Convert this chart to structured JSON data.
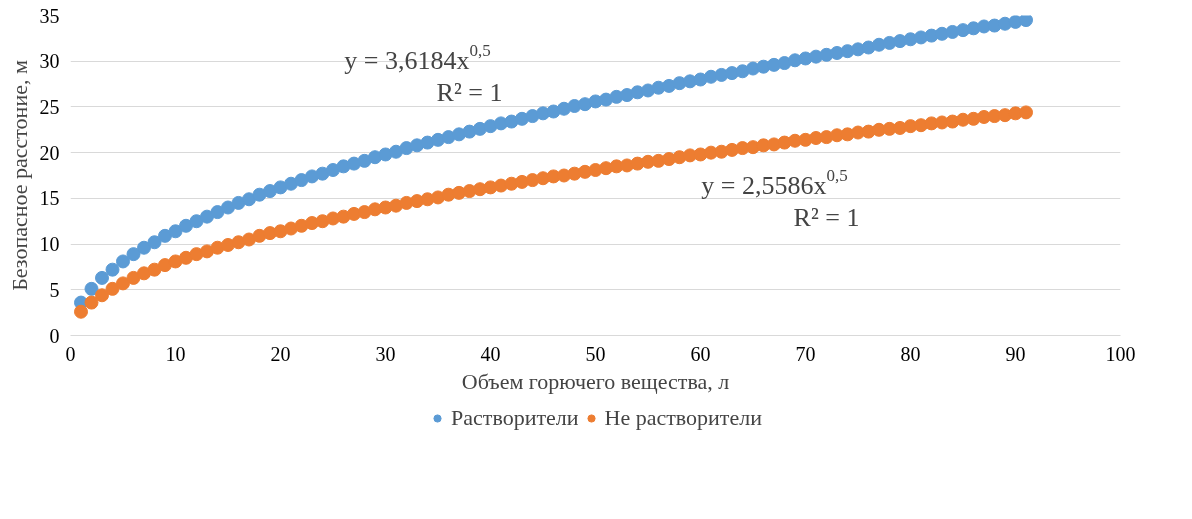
{
  "chart_data": {
    "type": "scatter",
    "xlabel": "Объем горючего вещества, л",
    "ylabel": "Безопасное расстоние, м",
    "x": [
      1,
      2,
      3,
      4,
      5,
      6,
      7,
      8,
      9,
      10,
      11,
      12,
      13,
      14,
      15,
      16,
      17,
      18,
      19,
      20,
      21,
      22,
      23,
      24,
      25,
      26,
      27,
      28,
      29,
      30,
      31,
      32,
      33,
      34,
      35,
      36,
      37,
      38,
      39,
      40,
      41,
      42,
      43,
      44,
      45,
      46,
      47,
      48,
      49,
      50,
      51,
      52,
      53,
      54,
      55,
      56,
      57,
      58,
      59,
      60,
      61,
      62,
      63,
      64,
      65,
      66,
      67,
      68,
      69,
      70,
      71,
      72,
      73,
      74,
      75,
      76,
      77,
      78,
      79,
      80,
      81,
      82,
      83,
      84,
      85,
      86,
      87,
      88,
      89,
      90,
      91
    ],
    "series": [
      {
        "name": "Растворители",
        "color": "#5b9bd5",
        "values": [
          3.6,
          5.1,
          6.3,
          7.2,
          8.1,
          8.9,
          9.6,
          10.2,
          10.9,
          11.4,
          12.0,
          12.5,
          13.0,
          13.5,
          14.0,
          14.5,
          14.9,
          15.4,
          15.8,
          16.2,
          16.6,
          17.0,
          17.4,
          17.7,
          18.1,
          18.5,
          18.8,
          19.1,
          19.5,
          19.8,
          20.1,
          20.5,
          20.8,
          21.1,
          21.4,
          21.7,
          22.0,
          22.3,
          22.6,
          22.9,
          23.2,
          23.4,
          23.7,
          24.0,
          24.3,
          24.5,
          24.8,
          25.1,
          25.3,
          25.6,
          25.8,
          26.1,
          26.3,
          26.6,
          26.8,
          27.1,
          27.3,
          27.6,
          27.8,
          28.0,
          28.3,
          28.5,
          28.7,
          28.9,
          29.2,
          29.4,
          29.6,
          29.8,
          30.1,
          30.3,
          30.5,
          30.7,
          30.9,
          31.1,
          31.3,
          31.5,
          31.8,
          32.0,
          32.2,
          32.4,
          32.6,
          32.8,
          33.0,
          33.2,
          33.4,
          33.6,
          33.8,
          33.9,
          34.1,
          34.3,
          34.5
        ]
      },
      {
        "name": "Не растворители",
        "color": "#ed7d31",
        "values": [
          2.6,
          3.6,
          4.4,
          5.1,
          5.7,
          6.3,
          6.8,
          7.2,
          7.7,
          8.1,
          8.5,
          8.9,
          9.2,
          9.6,
          9.9,
          10.2,
          10.5,
          10.9,
          11.2,
          11.4,
          11.7,
          12.0,
          12.3,
          12.5,
          12.8,
          13.0,
          13.3,
          13.5,
          13.8,
          14.0,
          14.2,
          14.5,
          14.7,
          14.9,
          15.1,
          15.4,
          15.6,
          15.8,
          16.0,
          16.2,
          16.4,
          16.6,
          16.8,
          17.0,
          17.2,
          17.4,
          17.5,
          17.7,
          17.9,
          18.1,
          18.3,
          18.5,
          18.6,
          18.8,
          19.0,
          19.1,
          19.3,
          19.5,
          19.7,
          19.8,
          20.0,
          20.1,
          20.3,
          20.5,
          20.6,
          20.8,
          20.9,
          21.1,
          21.3,
          21.4,
          21.6,
          21.7,
          21.9,
          22.0,
          22.2,
          22.3,
          22.5,
          22.6,
          22.7,
          22.9,
          23.0,
          23.2,
          23.3,
          23.4,
          23.6,
          23.7,
          23.9,
          24.0,
          24.1,
          24.3,
          24.4
        ]
      }
    ],
    "annotations": [
      "y = 3,6184x$^{0,5}$\nR² = 1",
      "y = 2,5586x$^{0,5}$\nR² = 1"
    ],
    "xlim": [
      0,
      100
    ],
    "xticks": [
      0,
      10,
      20,
      30,
      40,
      50,
      60,
      70,
      80,
      90,
      100
    ],
    "ylim": [
      0,
      35
    ],
    "yticks": [
      0,
      5,
      10,
      15,
      20,
      25,
      30,
      35
    ],
    "grid": "y",
    "legend": "bottom",
    "marker": "circle"
  }
}
